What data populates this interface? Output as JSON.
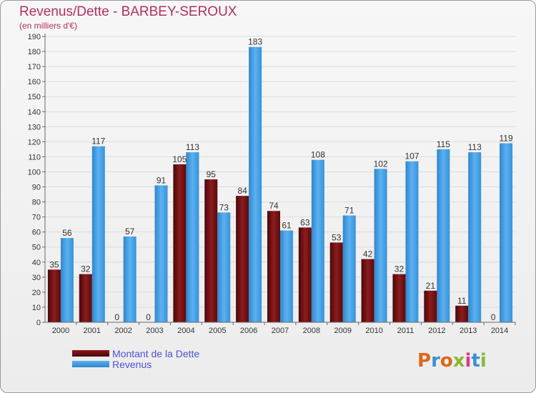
{
  "title": "Revenus/Dette - BARBEY-SEROUX",
  "subtitle": "(en milliers d'€)",
  "logo": {
    "text": "Proxiti"
  },
  "colors": {
    "dette": "#7a1416",
    "revenus": "#3d9ee6",
    "axis": "#6a6a6a",
    "grid": "#dcdcdc"
  },
  "chart_data": {
    "type": "bar",
    "title": "Revenus/Dette - BARBEY-SEROUX",
    "subtitle": "(en milliers d'€)",
    "categories": [
      "2000",
      "2001",
      "2002",
      "2003",
      "2004",
      "2005",
      "2006",
      "2007",
      "2008",
      "2009",
      "2010",
      "2011",
      "2012",
      "2013",
      "2014"
    ],
    "series": [
      {
        "name": "Montant de la Dette",
        "values": [
          35,
          32,
          0,
          0,
          105,
          95,
          84,
          74,
          63,
          53,
          42,
          32,
          21,
          11,
          0
        ]
      },
      {
        "name": "Revenus",
        "values": [
          56,
          117,
          57,
          91,
          113,
          73,
          183,
          61,
          108,
          71,
          102,
          107,
          115,
          113,
          119
        ]
      }
    ],
    "ylim": [
      0,
      190
    ],
    "yticks": [
      0,
      10,
      20,
      30,
      40,
      50,
      60,
      70,
      80,
      90,
      100,
      110,
      120,
      130,
      140,
      150,
      160,
      170,
      180,
      190
    ],
    "legend": "bottom-left",
    "grid": true
  }
}
